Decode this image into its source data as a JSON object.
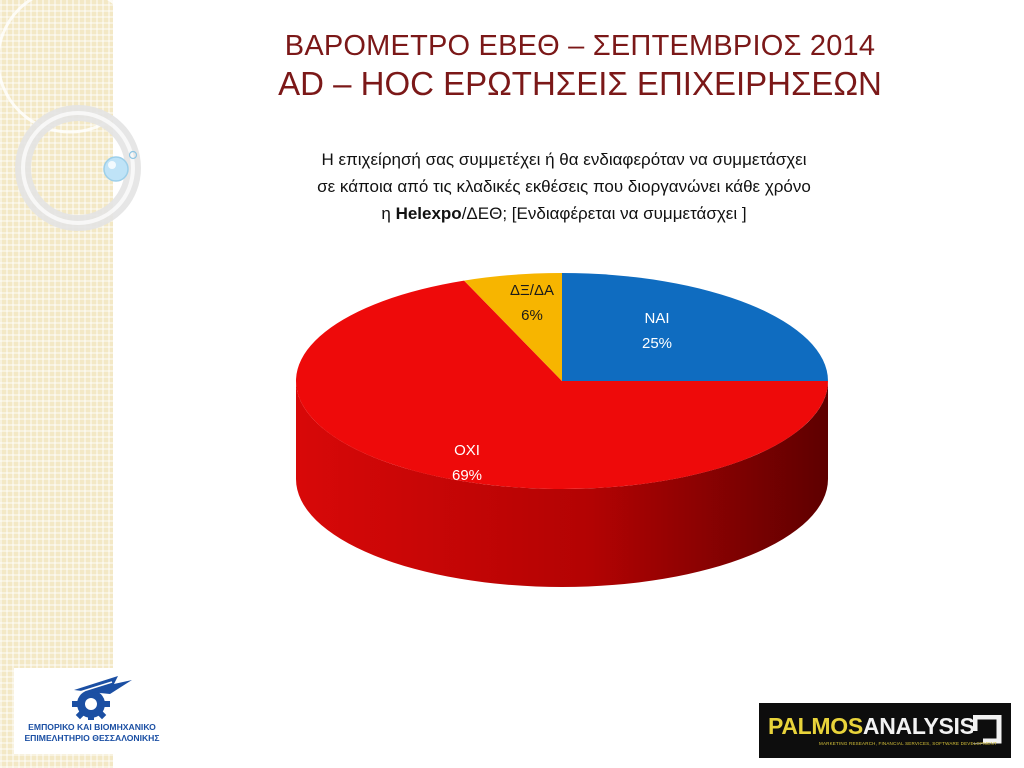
{
  "header": {
    "title_line1": "ΒΑΡΟΜΕΤΡΟ ΕΒΕΘ – ΣΕΠΤΕΜΒΡΙΟΣ 2014",
    "title_line2": "AD – HOC ΕΡΩΤΗΣΕΙΣ ΕΠΙΧΕΙΡΗΣΕΩΝ"
  },
  "question": {
    "line1": "Η επιχείρησή σας συμμετέχει ή θα ενδιαφερόταν να συμμετάσχει",
    "line2": "σε κάποια από τις κλαδικές εκθέσεις που διοργανώνει κάθε χρόνο",
    "line3_prefix": "η ",
    "line3_bold": "Helexpo",
    "line3_rest": "/ΔΕΘ; [Ενδιαφέρεται να συμμετάσχει ]"
  },
  "chart_data": {
    "type": "pie",
    "style": "3d",
    "slices": [
      {
        "label": "ΝΑΙ",
        "value": 25,
        "value_label": "25%",
        "color": "#0f6cc0",
        "label_color": "#ffffff"
      },
      {
        "label": "ΟΧΙ",
        "value": 69,
        "value_label": "69%",
        "color": "#ee0a0a",
        "label_color": "#ffffff"
      },
      {
        "label": "ΔΞ/ΔΑ",
        "value": 6,
        "value_label": "6%",
        "color": "#f7b500",
        "label_color": "#1a1a1a"
      }
    ]
  },
  "logos": {
    "left_line1": "ΕΜΠΟΡΙΚΟ ΚΑΙ ΒΙΟΜΗΧΑΝΙΚΟ",
    "left_line2": "ΕΠΙΜΕΛΗΤΗΡΙΟ ΘΕΣΣΑΛΟΝΙΚΗΣ",
    "right_part1": "PALMOS",
    "right_part2": "ANALYSIS",
    "right_sub": "MARKETING RESEARCH, FINANCIAL SERVICES, SOFTWARE DEVELOPMENT"
  },
  "colors": {
    "title": "#7b1818",
    "side_band": "#f3e8c5",
    "logo_blue": "#1b4fa3"
  }
}
